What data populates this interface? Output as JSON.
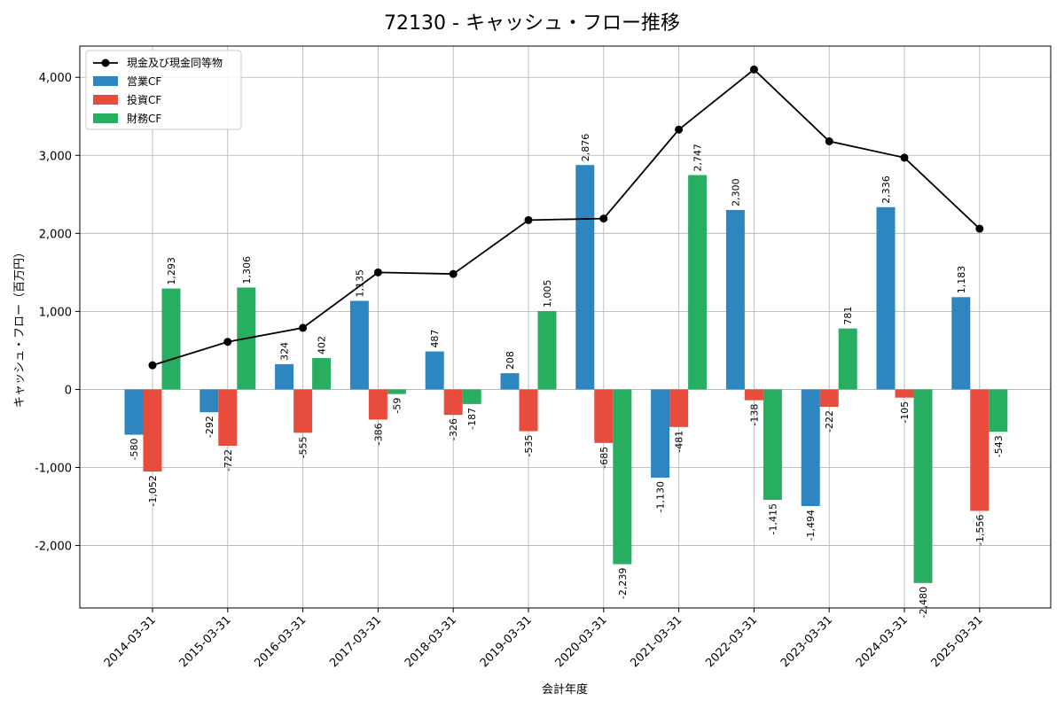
{
  "chart_data": {
    "type": "bar",
    "title": "72130 - キャッシュ・フロー推移",
    "xlabel": "会計年度",
    "ylabel": "キャッシュ・フロー（百万円）",
    "ylim": [
      -2800,
      4400
    ],
    "yticks": [
      -2000,
      -1000,
      0,
      1000,
      2000,
      3000,
      4000
    ],
    "ytick_labels": [
      "-2,000",
      "-1,000",
      "0",
      "1,000",
      "2,000",
      "3,000",
      "4,000"
    ],
    "grid": true,
    "legend_position": "top-left",
    "categories": [
      "2014-03-31",
      "2015-03-31",
      "2016-03-31",
      "2017-03-31",
      "2018-03-31",
      "2019-03-31",
      "2020-03-31",
      "2021-03-31",
      "2022-03-31",
      "2023-03-31",
      "2024-03-31",
      "2025-03-31"
    ],
    "series": [
      {
        "name": "営業CF",
        "kind": "bar",
        "color": "#2e86c1",
        "values": [
          -580,
          -292,
          324,
          1135,
          487,
          208,
          2876,
          -1130,
          2300,
          -1494,
          2336,
          1183
        ],
        "labels": [
          "-580",
          "-292",
          "324",
          "1,135",
          "487",
          "208",
          "2,876",
          "-1,130",
          "2,300",
          "-1,494",
          "2,336",
          "1,183"
        ]
      },
      {
        "name": "投資CF",
        "kind": "bar",
        "color": "#e74c3c",
        "values": [
          -1052,
          -722,
          -555,
          -386,
          -326,
          -535,
          -685,
          -481,
          -138,
          -222,
          -105,
          -1556
        ],
        "labels": [
          "-1,052",
          "-722",
          "-555",
          "-386",
          "-326",
          "-535",
          "-685",
          "-481",
          "-138",
          "-222",
          "-105",
          "-1,556"
        ]
      },
      {
        "name": "財務CF",
        "kind": "bar",
        "color": "#27ae60",
        "values": [
          1293,
          1306,
          402,
          -59,
          -187,
          1005,
          -2239,
          2747,
          -1415,
          781,
          -2480,
          -543
        ],
        "labels": [
          "1,293",
          "1,306",
          "402",
          "-59",
          "-187",
          "1,005",
          "-2,239",
          "2,747",
          "-1,415",
          "781",
          "-2,480",
          "-543"
        ]
      },
      {
        "name": "現金及び現金同等物",
        "kind": "line",
        "color": "#000000",
        "values": [
          310,
          610,
          790,
          1500,
          1480,
          2170,
          2190,
          3330,
          4100,
          3180,
          2970,
          2060
        ]
      }
    ]
  }
}
